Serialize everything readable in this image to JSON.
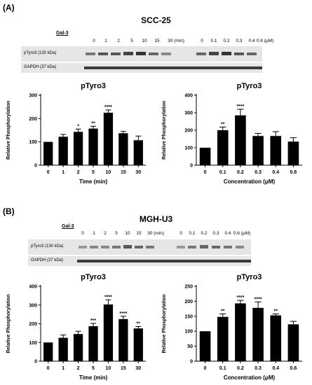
{
  "panels": [
    {
      "label": "(A)",
      "cell_line": "SCC-25",
      "blot": {
        "treatment_label": "Gal-3",
        "lanes_time": [
          "0",
          "1",
          "2",
          "5",
          "10",
          "15",
          "30 (min)"
        ],
        "lanes_conc": [
          "0",
          "0.1",
          "0.2",
          "0.3",
          "0.4",
          "0.6 (μM)"
        ],
        "rows": [
          "pTyro3 (130 kDa)",
          "GAPDH (37 kDa)"
        ]
      }
    },
    {
      "label": "(B)",
      "cell_line": "MGH-U3",
      "blot": {
        "treatment_label": "Gal-3",
        "lanes_time": [
          "0",
          "1",
          "2",
          "5",
          "10",
          "15",
          "30 (min)"
        ],
        "lanes_conc": [
          "0",
          "0.1",
          "0.2",
          "0.3",
          "0.4",
          "0.6 (μM)"
        ],
        "rows": [
          "pTyro3 (130 kDa)",
          "GAPDH (37 kDa)"
        ]
      }
    }
  ],
  "colors": {
    "bar": "#000000",
    "blot_bg": "#e6e6e6",
    "band": "#3a3a3a"
  },
  "chart_data": [
    {
      "type": "bar",
      "title": "pTyro3",
      "xlabel": "Time (min)",
      "ylabel": "Relative Phosphorylation",
      "categories": [
        "0",
        "1",
        "2",
        "5",
        "10",
        "15",
        "30"
      ],
      "values": [
        100,
        122,
        143,
        157,
        225,
        137,
        107
      ],
      "errors": [
        0,
        10,
        12,
        10,
        12,
        8,
        18
      ],
      "significance": [
        "",
        "",
        "*",
        "**",
        "****",
        "",
        ""
      ],
      "ylim": [
        0,
        300
      ],
      "yticks": [
        "0",
        "100",
        "200",
        "300"
      ],
      "ytick_values": [
        0,
        100,
        200,
        300
      ]
    },
    {
      "type": "bar",
      "title": "pTyro3",
      "xlabel": "Concentration (μM)",
      "ylabel": "Relative Phosphorylation",
      "categories": [
        "0",
        "0.1",
        "0.2",
        "0.3",
        "0.4",
        "0.6"
      ],
      "values": [
        100,
        200,
        285,
        167,
        167,
        135
      ],
      "errors": [
        0,
        18,
        35,
        15,
        25,
        22
      ],
      "significance": [
        "",
        "**",
        "****",
        "",
        "",
        ""
      ],
      "ylim": [
        0,
        400
      ],
      "yticks": [
        "0",
        "100",
        "200",
        "300",
        "400"
      ],
      "ytick_values": [
        0,
        100,
        200,
        300,
        400
      ]
    },
    {
      "type": "bar",
      "title": "pTyro3",
      "xlabel": "Time (min)",
      "ylabel": "Relative Phosphorylation",
      "categories": [
        "0",
        "1",
        "2",
        "5",
        "10",
        "15",
        "30"
      ],
      "values": [
        100,
        125,
        145,
        187,
        303,
        225,
        175
      ],
      "errors": [
        0,
        15,
        15,
        15,
        25,
        15,
        10
      ],
      "significance": [
        "",
        "",
        "",
        "***",
        "****",
        "****",
        "**"
      ],
      "ylim": [
        0,
        400
      ],
      "yticks": [
        "0",
        "100",
        "200",
        "300",
        "400"
      ],
      "ytick_values": [
        0,
        100,
        200,
        300,
        400
      ]
    },
    {
      "type": "bar",
      "title": "pTyro3",
      "xlabel": "Concentration (μM)",
      "ylabel": "Relative Phosphorylation",
      "categories": [
        "0",
        "0.1",
        "0.2",
        "0.3",
        "0.4",
        "0.6"
      ],
      "values": [
        100,
        148,
        193,
        178,
        153,
        123
      ],
      "errors": [
        0,
        10,
        10,
        20,
        5,
        10
      ],
      "significance": [
        "",
        "**",
        "****",
        "****",
        "**",
        ""
      ],
      "ylim": [
        0,
        250
      ],
      "yticks": [
        "0",
        "50",
        "100",
        "150",
        "200",
        "250"
      ],
      "ytick_values": [
        0,
        50,
        100,
        150,
        200,
        250
      ]
    }
  ]
}
